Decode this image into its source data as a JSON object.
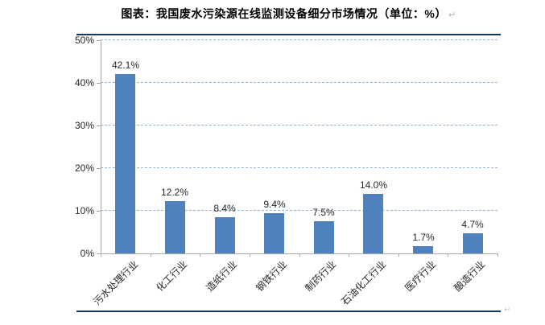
{
  "title": {
    "text": "图表：我国废水污染源在线监测设备细分市场情况（单位：%）",
    "return_mark": "↵"
  },
  "end_mark": "↵",
  "chart_data": {
    "type": "bar",
    "title": "图表：我国废水污染源在线监测设备细分市场情况（单位：%）",
    "categories": [
      "污水处理行业",
      "化工行业",
      "造纸行业",
      "钢铁行业",
      "制药行业",
      "石油化工行业",
      "医疗行业",
      "酿造行业"
    ],
    "values": [
      42.1,
      12.2,
      8.4,
      9.4,
      7.5,
      14.0,
      1.7,
      4.7
    ],
    "value_labels": [
      "42.1%",
      "12.2%",
      "8.4%",
      "9.4%",
      "7.5%",
      "14.0%",
      "1.7%",
      "4.7%"
    ],
    "xlabel": "",
    "ylabel": "",
    "ylim": [
      0,
      50
    ],
    "yticks": [
      0,
      10,
      20,
      30,
      40,
      50
    ],
    "ytick_labels": [
      "0%",
      "10%",
      "20%",
      "30%",
      "40%",
      "50%"
    ],
    "grid": "horizontal-dashed",
    "legend_position": "none",
    "bar_color": "#4f81bd",
    "gridline_color": "#95b3d7",
    "axis_color": "#a6a6a6",
    "border_rule_color": "#17375e",
    "label_color": "#262626"
  }
}
